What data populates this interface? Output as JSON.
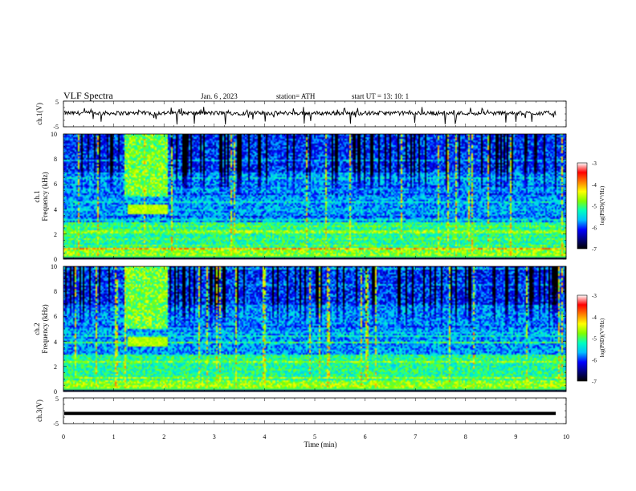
{
  "header": {
    "title": "VLF  Spectra",
    "date": "Jan. 6  , 2023",
    "station": "station= ATH",
    "start_ut": "start  UT  =   13: 10: 1"
  },
  "chart_data": [
    {
      "type": "line",
      "panel": "ch1-waveform",
      "ylabel": "ch.1(V)",
      "ylim": [
        -5,
        5
      ],
      "yticks": [
        "5",
        "-5"
      ],
      "xlim": [
        0,
        10
      ],
      "baseline_level": 0.3,
      "color": "#000000"
    },
    {
      "type": "heatmap",
      "panel": "ch1-spectrogram",
      "ylabel_channel": "ch.1",
      "ylabel": "Frequency (kHz)",
      "ylim": [
        0,
        10
      ],
      "yticks": [
        "0",
        "2",
        "4",
        "6",
        "8",
        "10"
      ],
      "xlim": [
        0,
        10
      ],
      "blob": {
        "x": [
          1.25,
          2.05
        ],
        "y": [
          3.6,
          4.4
        ]
      }
    },
    {
      "type": "heatmap",
      "panel": "ch2-spectrogram",
      "ylabel_channel": "ch.2",
      "ylabel": "Frequency (kHz)",
      "ylim": [
        0,
        10
      ],
      "yticks": [
        "0",
        "2",
        "4",
        "6",
        "8",
        "10"
      ],
      "xlim": [
        0,
        10
      ],
      "blob": {
        "x": [
          1.25,
          2.05
        ],
        "y": [
          3.6,
          4.4
        ]
      }
    },
    {
      "type": "line",
      "panel": "ch3-waveform",
      "ylabel": "ch.3(V)",
      "ylim": [
        -5,
        5
      ],
      "yticks": [
        "5",
        "-5"
      ],
      "xlim": [
        0,
        10
      ],
      "constant_level": -1,
      "color": "#000000"
    },
    {
      "type": "colorbar",
      "label": "log(PSD)(V²/Hz)",
      "range": [
        -7,
        -3
      ],
      "ticks": [
        "-3",
        "-4",
        "-5",
        "-6",
        "-7"
      ],
      "colormap": [
        "#000000",
        "#00007f",
        "#0000ff",
        "#00bfff",
        "#00ffbf",
        "#7fff00",
        "#ffff00",
        "#ff7f00",
        "#ff0000",
        "#ffffff"
      ]
    }
  ],
  "xaxis": {
    "label": "Time  (min)",
    "ticks": [
      "0",
      "1",
      "2",
      "3",
      "4",
      "5",
      "6",
      "7",
      "8",
      "9",
      "10"
    ]
  }
}
